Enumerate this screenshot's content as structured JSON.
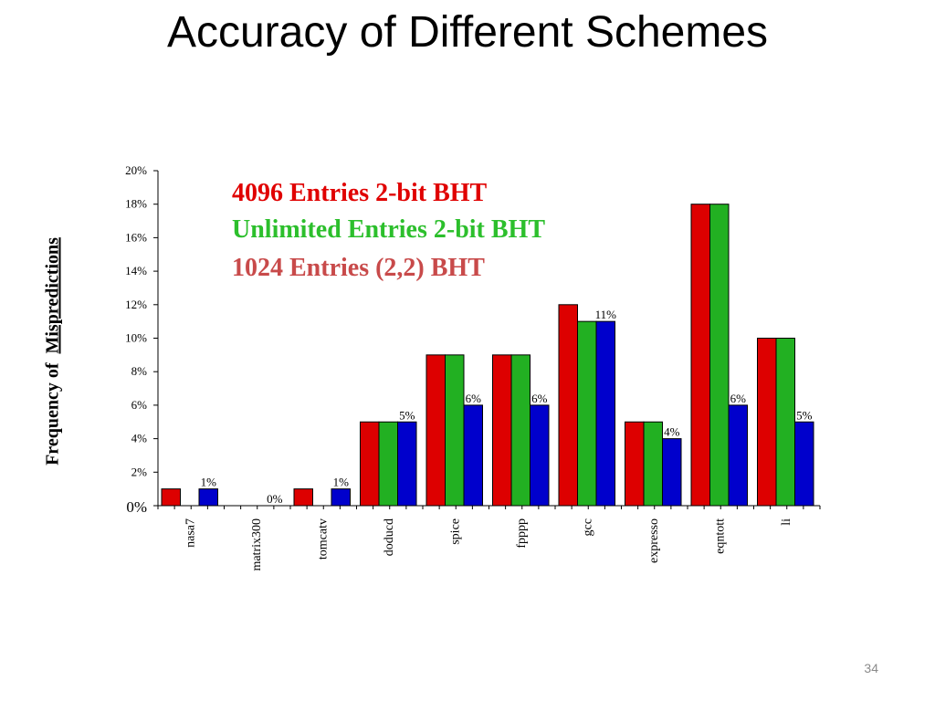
{
  "slide": {
    "title": "Accuracy of Different Schemes",
    "page_number": "34"
  },
  "colors": {
    "red": "#dd0000",
    "green": "#22b022",
    "blue": "#0000cc",
    "legend_red": "#e00000",
    "legend_green": "#2cbf2c",
    "legend_rose": "#c84a4a"
  },
  "chart_data": {
    "type": "bar",
    "title": "",
    "ylabel_prefix": "Frequency of",
    "ylabel_main": "Mispredictions",
    "xlabel": "",
    "ylim": [
      0,
      20
    ],
    "yticks": [
      "0%",
      "2%",
      "4%",
      "6%",
      "8%",
      "10%",
      "12%",
      "14%",
      "16%",
      "18%",
      "20%"
    ],
    "categories": [
      "nasa7",
      "matrix300",
      "tomcatv",
      "doducd",
      "spice",
      "fpppp",
      "gcc",
      "expresso",
      "eqntott",
      "li"
    ],
    "series": [
      {
        "name": "4096 Entries 2-bit BHT",
        "values": [
          1,
          0,
          1,
          5,
          9,
          9,
          12,
          5,
          18,
          10
        ]
      },
      {
        "name": "Unlimited Entries 2-bit BHT",
        "values": [
          0,
          0,
          0,
          5,
          9,
          9,
          11,
          5,
          18,
          10
        ]
      },
      {
        "name": "1024 Entries (2,2) BHT",
        "values": [
          1,
          0,
          1,
          5,
          6,
          6,
          11,
          4,
          6,
          5
        ]
      }
    ],
    "data_labels": [
      "1%",
      "0%",
      "1%",
      "5%",
      "6%",
      "6%",
      "11%",
      "4%",
      "6%",
      "5%"
    ],
    "legend_placement": "top-center"
  }
}
